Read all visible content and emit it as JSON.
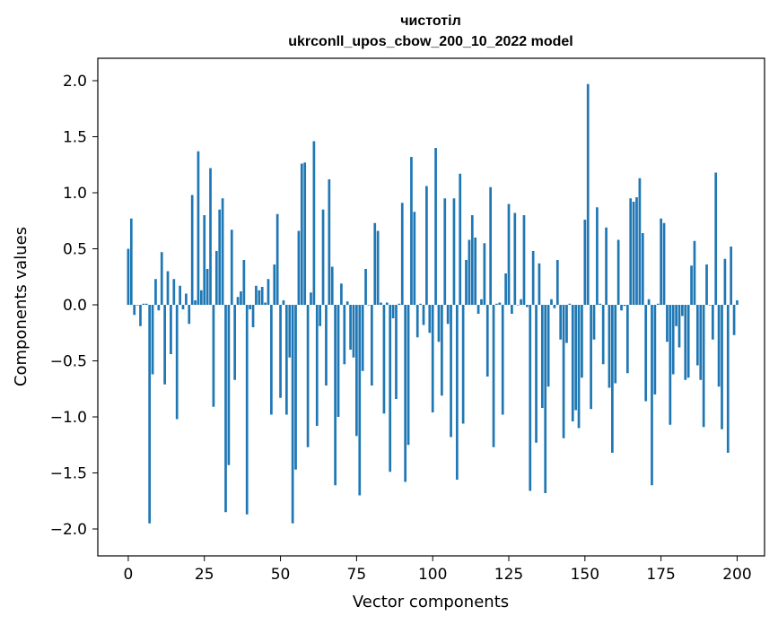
{
  "chart_data": {
    "type": "bar",
    "title": "чистотіл",
    "subtitle": "ukrconll_upos_cbow_200_10_2022 model",
    "xlabel": "Vector components",
    "ylabel": "Components values",
    "xlim": [
      -10,
      209
    ],
    "ylim": [
      -2.24,
      2.2
    ],
    "xticks": [
      0,
      25,
      50,
      75,
      100,
      125,
      150,
      175,
      200
    ],
    "yticks": [
      -2.0,
      -1.5,
      -1.0,
      -0.5,
      0.0,
      0.5,
      1.0,
      1.5,
      2.0
    ],
    "xtick_labels": [
      "0",
      "25",
      "50",
      "75",
      "100",
      "125",
      "150",
      "175",
      "200"
    ],
    "ytick_labels": [
      "−2.0",
      "−1.5",
      "−1.0",
      "−0.5",
      "0.0",
      "0.5",
      "1.0",
      "1.5",
      "2.0"
    ],
    "bar_color": "#1f77b4",
    "grid": false,
    "values": [
      0.5,
      0.77,
      -0.09,
      0.0,
      -0.19,
      0.01,
      0.01,
      -1.95,
      -0.62,
      0.23,
      -0.05,
      0.47,
      -0.71,
      0.3,
      -0.44,
      0.23,
      -1.02,
      0.17,
      -0.04,
      0.1,
      -0.17,
      0.98,
      0.04,
      1.37,
      0.13,
      0.8,
      0.32,
      1.22,
      -0.91,
      0.48,
      0.85,
      0.95,
      -1.85,
      -1.43,
      0.67,
      -0.67,
      0.07,
      0.12,
      0.4,
      -1.87,
      -0.04,
      -0.2,
      0.17,
      0.13,
      0.16,
      0.02,
      0.23,
      -0.98,
      0.36,
      0.81,
      -0.83,
      0.04,
      -0.98,
      -0.47,
      -1.95,
      -1.47,
      0.66,
      1.26,
      1.27,
      -1.27,
      0.11,
      1.46,
      -1.08,
      -0.19,
      0.85,
      -0.72,
      1.12,
      0.34,
      -1.61,
      -1.0,
      0.19,
      -0.53,
      0.03,
      -0.4,
      -0.47,
      -1.17,
      -1.7,
      -0.59,
      0.32,
      0.0,
      -0.72,
      0.73,
      0.66,
      0.02,
      -0.97,
      0.02,
      -1.49,
      -0.12,
      -0.84,
      0.01,
      0.91,
      -1.58,
      -1.25,
      1.32,
      0.83,
      -0.29,
      0.01,
      -0.18,
      1.06,
      -0.25,
      -0.96,
      1.4,
      -0.33,
      -0.81,
      0.95,
      -0.17,
      -1.18,
      0.95,
      -1.56,
      1.17,
      -1.06,
      0.4,
      0.58,
      0.8,
      0.6,
      -0.08,
      0.05,
      0.55,
      -0.64,
      1.05,
      -1.27,
      0.01,
      0.02,
      -0.98,
      0.28,
      0.9,
      -0.08,
      0.82,
      0.0,
      0.05,
      0.8,
      -0.02,
      -1.66,
      0.48,
      -1.23,
      0.37,
      -0.92,
      -1.68,
      -0.73,
      0.05,
      -0.03,
      0.4,
      -0.31,
      -1.19,
      -0.34,
      0.01,
      -1.04,
      -0.94,
      -1.1,
      -0.65,
      0.76,
      1.97,
      -0.93,
      -0.31,
      0.87,
      0.01,
      -0.53,
      0.69,
      -0.74,
      -1.32,
      -0.7,
      0.58,
      -0.05,
      -0.01,
      -0.61,
      0.95,
      0.92,
      0.96,
      1.13,
      0.64,
      -0.86,
      0.05,
      -1.61,
      -0.8,
      0.01,
      0.77,
      0.73,
      -0.33,
      -1.07,
      -0.62,
      -0.19,
      -0.38,
      -0.1,
      -0.67,
      -0.65,
      0.35,
      0.57,
      -0.54,
      -0.67,
      -1.09,
      0.36,
      0.0,
      -0.31,
      1.18,
      -0.73,
      -1.11,
      0.41,
      -1.32,
      0.52,
      -0.27,
      0.04
    ]
  }
}
